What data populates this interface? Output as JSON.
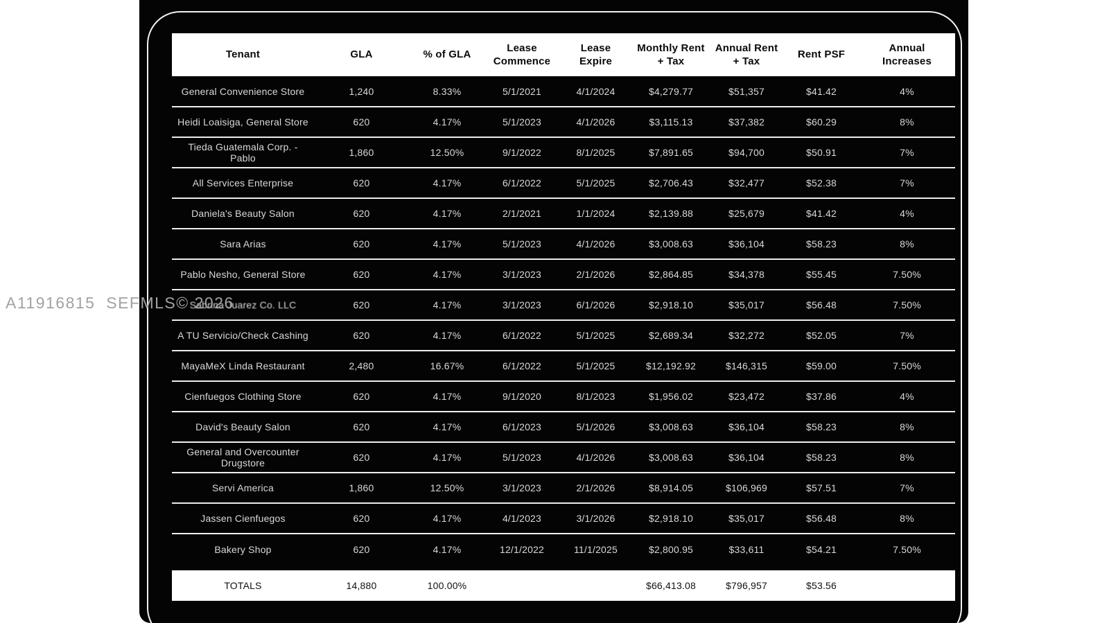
{
  "watermark": "A11916815  SEFMLS© 2026",
  "colors": {
    "page_bg": "#ffffff",
    "card_bg": "#040404",
    "border_ring": "#f2f2f2",
    "header_bg": "#ffffff",
    "header_text": "#0a0a0a",
    "row_text": "#d9d9d9",
    "obscured_text": "#2e2e2e"
  },
  "table": {
    "columns": [
      "Tenant",
      "GLA",
      "% of GLA",
      "Lease\nCommence",
      "Lease\nExpire",
      "Monthly Rent\n+ Tax",
      "Annual Rent\n+ Tax",
      "Rent PSF",
      "Annual\nIncreases"
    ],
    "rows": [
      {
        "cells": [
          "General Convenience Store",
          "1,240",
          "8.33%",
          "5/1/2021",
          "4/1/2024",
          "$4,279.77",
          "$51,357",
          "$41.42",
          "4%"
        ]
      },
      {
        "cells": [
          "Heidi Loaisiga, General Store",
          "620",
          "4.17%",
          "5/1/2023",
          "4/1/2026",
          "$3,115.13",
          "$37,382",
          "$60.29",
          "8%"
        ]
      },
      {
        "cells": [
          "Tieda Guatemala Corp. - Pablo",
          "1,860",
          "12.50%",
          "9/1/2022",
          "8/1/2025",
          "$7,891.65",
          "$94,700",
          "$50.91",
          "7%"
        ]
      },
      {
        "cells": [
          "All Services Enterprise",
          "620",
          "4.17%",
          "6/1/2022",
          "5/1/2025",
          "$2,706.43",
          "$32,477",
          "$52.38",
          "7%"
        ]
      },
      {
        "cells": [
          "Daniela's Beauty Salon",
          "620",
          "4.17%",
          "2/1/2021",
          "1/1/2024",
          "$2,139.88",
          "$25,679",
          "$41.42",
          "4%"
        ]
      },
      {
        "cells": [
          "Sara Arias",
          "620",
          "4.17%",
          "5/1/2023",
          "4/1/2026",
          "$3,008.63",
          "$36,104",
          "$58.23",
          "8%"
        ]
      },
      {
        "cells": [
          "Pablo Nesho, General Store",
          "620",
          "4.17%",
          "3/1/2023",
          "2/1/2026",
          "$2,864.85",
          "$34,378",
          "$55.45",
          "7.50%"
        ]
      },
      {
        "cells": [
          "Sabrina Juarez Co. LLC",
          "620",
          "4.17%",
          "3/1/2023",
          "6/1/2026",
          "$2,918.10",
          "$35,017",
          "$56.48",
          "7.50%"
        ],
        "tenant_obscured": true
      },
      {
        "cells": [
          "A TU Servicio/Check Cashing",
          "620",
          "4.17%",
          "6/1/2022",
          "5/1/2025",
          "$2,689.34",
          "$32,272",
          "$52.05",
          "7%"
        ]
      },
      {
        "cells": [
          "MayaMeX Linda Restaurant",
          "2,480",
          "16.67%",
          "6/1/2022",
          "5/1/2025",
          "$12,192.92",
          "$146,315",
          "$59.00",
          "7.50%"
        ]
      },
      {
        "cells": [
          "Cienfuegos Clothing Store",
          "620",
          "4.17%",
          "9/1/2020",
          "8/1/2023",
          "$1,956.02",
          "$23,472",
          "$37.86",
          "4%"
        ]
      },
      {
        "cells": [
          "David's Beauty Salon",
          "620",
          "4.17%",
          "6/1/2023",
          "5/1/2026",
          "$3,008.63",
          "$36,104",
          "$58.23",
          "8%"
        ]
      },
      {
        "cells": [
          "General and Overcounter Drugstore",
          "620",
          "4.17%",
          "5/1/2023",
          "4/1/2026",
          "$3,008.63",
          "$36,104",
          "$58.23",
          "8%"
        ]
      },
      {
        "cells": [
          "Servi America",
          "1,860",
          "12.50%",
          "3/1/2023",
          "2/1/2026",
          "$8,914.05",
          "$106,969",
          "$57.51",
          "7%"
        ]
      },
      {
        "cells": [
          "Jassen Cienfuegos",
          "620",
          "4.17%",
          "4/1/2023",
          "3/1/2026",
          "$2,918.10",
          "$35,017",
          "$56.48",
          "8%"
        ]
      },
      {
        "cells": [
          "Bakery Shop",
          "620",
          "4.17%",
          "12/1/2022",
          "11/1/2025",
          "$2,800.95",
          "$33,611",
          "$54.21",
          "7.50%"
        ]
      }
    ],
    "totals": {
      "cells": [
        "TOTALS",
        "14,880",
        "100.00%",
        "",
        "",
        "$66,413.08",
        "$796,957",
        "$53.56",
        ""
      ]
    }
  }
}
